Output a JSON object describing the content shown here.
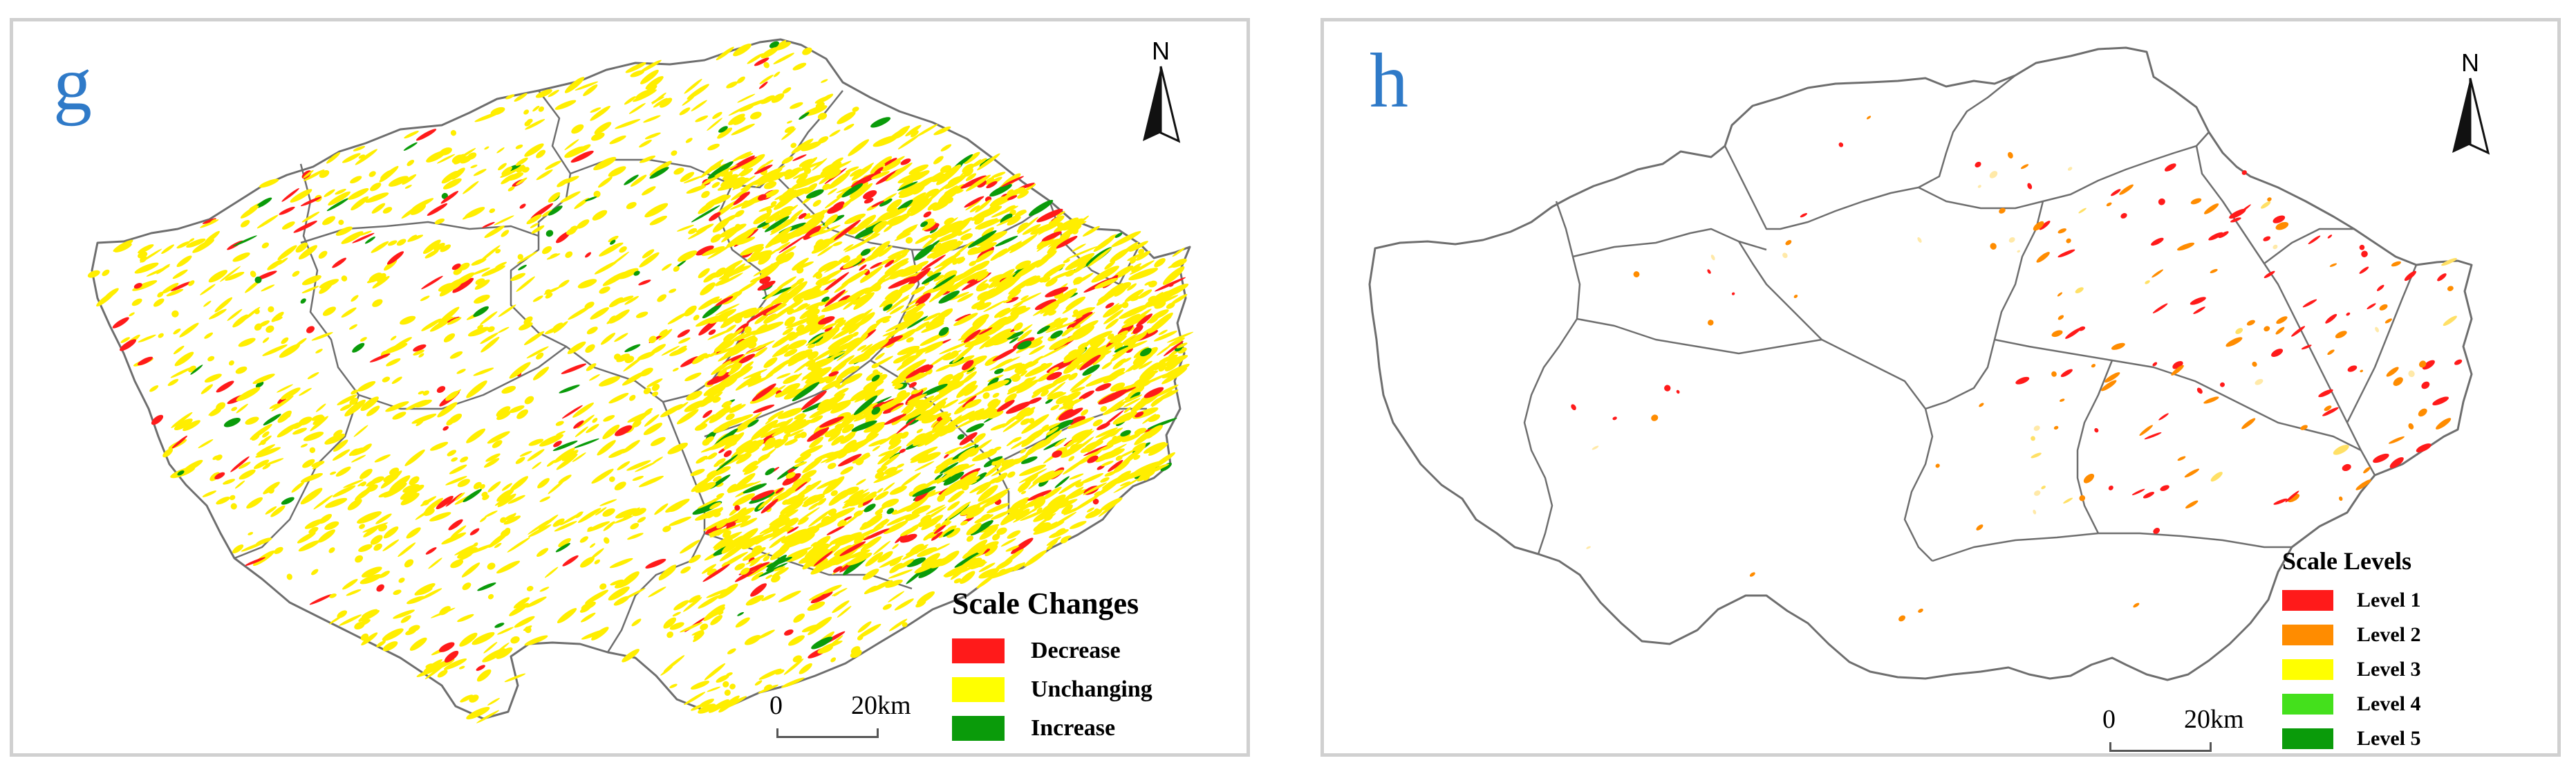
{
  "panels": {
    "g": {
      "letter": "g",
      "north_label": "N",
      "legend": {
        "title": "Scale Changes",
        "items": [
          {
            "label": "Decrease",
            "color": "#ff1a1a"
          },
          {
            "label": "Unchanging",
            "color": "#ffff00"
          },
          {
            "label": "Increase",
            "color": "#0a9b0a"
          }
        ]
      },
      "scale": {
        "zero": "0",
        "twenty": "20",
        "unit": "km"
      }
    },
    "h": {
      "letter": "h",
      "north_label": "N",
      "legend": {
        "title": "Scale Levels",
        "items": [
          {
            "label": "Level 1",
            "color": "#ff1a1a"
          },
          {
            "label": "Level 2",
            "color": "#ff8c00"
          },
          {
            "label": "Level 3",
            "color": "#ffff00"
          },
          {
            "label": "Level 4",
            "color": "#44e01c"
          },
          {
            "label": "Level 5",
            "color": "#0a9b0a"
          }
        ]
      },
      "scale": {
        "zero": "0",
        "twenty": "20",
        "unit": "km"
      }
    }
  },
  "colors": {
    "panel_letter": "#2f7ac8",
    "boundary": "#6e6e6e",
    "panel_border": "#d0d0d0"
  }
}
